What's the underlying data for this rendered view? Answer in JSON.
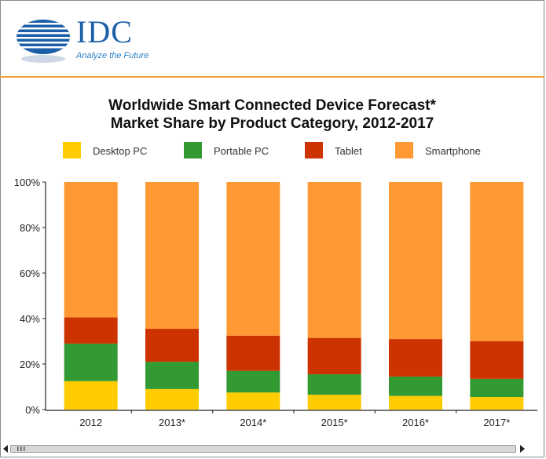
{
  "header": {
    "logo_text": "IDC",
    "tagline": "Analyze the Future"
  },
  "chart_data": {
    "type": "bar",
    "stacked": true,
    "title_line1": "Worldwide Smart Connected Device Forecast*",
    "title_line2": "Market Share by Product Category, 2012-2017",
    "categories": [
      "2012",
      "2013*",
      "2014*",
      "2015*",
      "2016*",
      "2017*"
    ],
    "series": [
      {
        "name": "Desktop PC",
        "color": "#ffcc00",
        "values": [
          12.5,
          9,
          7.5,
          6.5,
          6,
          5.5
        ]
      },
      {
        "name": "Portable PC",
        "color": "#339933",
        "values": [
          16.5,
          12,
          9.5,
          9,
          8.5,
          8
        ]
      },
      {
        "name": "Tablet",
        "color": "#cc3300",
        "values": [
          11.5,
          14.5,
          15.5,
          16,
          16.5,
          16.5
        ]
      },
      {
        "name": "Smartphone",
        "color": "#ff9933",
        "values": [
          59.5,
          64.5,
          67.5,
          68.5,
          69,
          70
        ]
      }
    ],
    "yticks": [
      "0%",
      "20%",
      "40%",
      "60%",
      "80%",
      "100%"
    ],
    "ylim": [
      0,
      100
    ],
    "legend_position": "top",
    "grid": false
  }
}
